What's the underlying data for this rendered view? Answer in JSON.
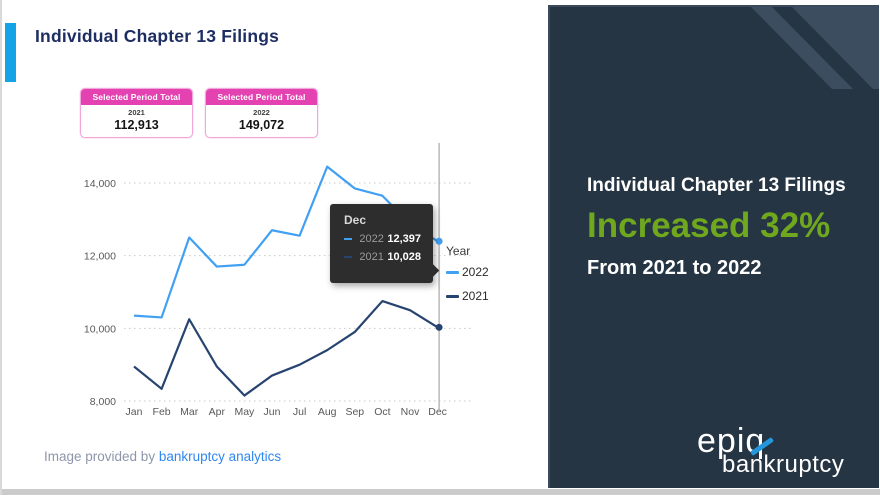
{
  "left": {
    "title": "Individual Chapter 13 Filings",
    "cards": [
      {
        "header": "Selected Period Total",
        "year": "2021",
        "total": "112,913"
      },
      {
        "header": "Selected Period Total",
        "year": "2022",
        "total": "149,072"
      }
    ],
    "footer_prefix": "Image provided by ",
    "footer_brand": "bankruptcy analytics"
  },
  "chart_data": {
    "type": "line",
    "categories": [
      "Jan",
      "Feb",
      "Mar",
      "Apr",
      "May",
      "Jun",
      "Jul",
      "Aug",
      "Sep",
      "Oct",
      "Nov",
      "Dec"
    ],
    "series": [
      {
        "name": "2022",
        "color": "#41a0f2",
        "values": [
          10350,
          10300,
          12500,
          11700,
          11750,
          12700,
          12550,
          14450,
          13850,
          13650,
          12875,
          12397
        ]
      },
      {
        "name": "2021",
        "color": "#274470",
        "values": [
          8950,
          8335,
          10250,
          8950,
          8150,
          8700,
          9000,
          9400,
          9900,
          10750,
          10500,
          10028
        ]
      }
    ],
    "y_ticks": [
      {
        "label": "8,000",
        "value": 8000
      },
      {
        "label": "10,000",
        "value": 10000
      },
      {
        "label": "12,000",
        "value": 12000
      },
      {
        "label": "14,000",
        "value": 14000
      }
    ],
    "ylim": [
      8000,
      15000
    ],
    "grid": "dotted-horizontal",
    "legend": {
      "title": "Year",
      "position": "right"
    },
    "highlight_category": "Dec",
    "tooltip": {
      "month": "Dec",
      "rows": [
        {
          "series": "2022",
          "value": "12,397"
        },
        {
          "series": "2021",
          "value": "10,028"
        }
      ]
    }
  },
  "panel": {
    "line1": "Individual Chapter 13 Filings",
    "line2": "Increased 32%",
    "line3": "From 2021 to 2022",
    "logo_epiq": "epiq",
    "logo_bankruptcy": "bankruptcy"
  },
  "theme": {
    "accent_bar_blue": "#14a3e6",
    "title_navy": "#1e2e63",
    "card_pink": "#e442b1",
    "panel_bg": "#253544",
    "panel_stripe": "#3c4d5f",
    "increase_green": "#6fa81f",
    "footer_link_blue": "#2f87f0",
    "logo_slash_blue": "#2496dc"
  }
}
